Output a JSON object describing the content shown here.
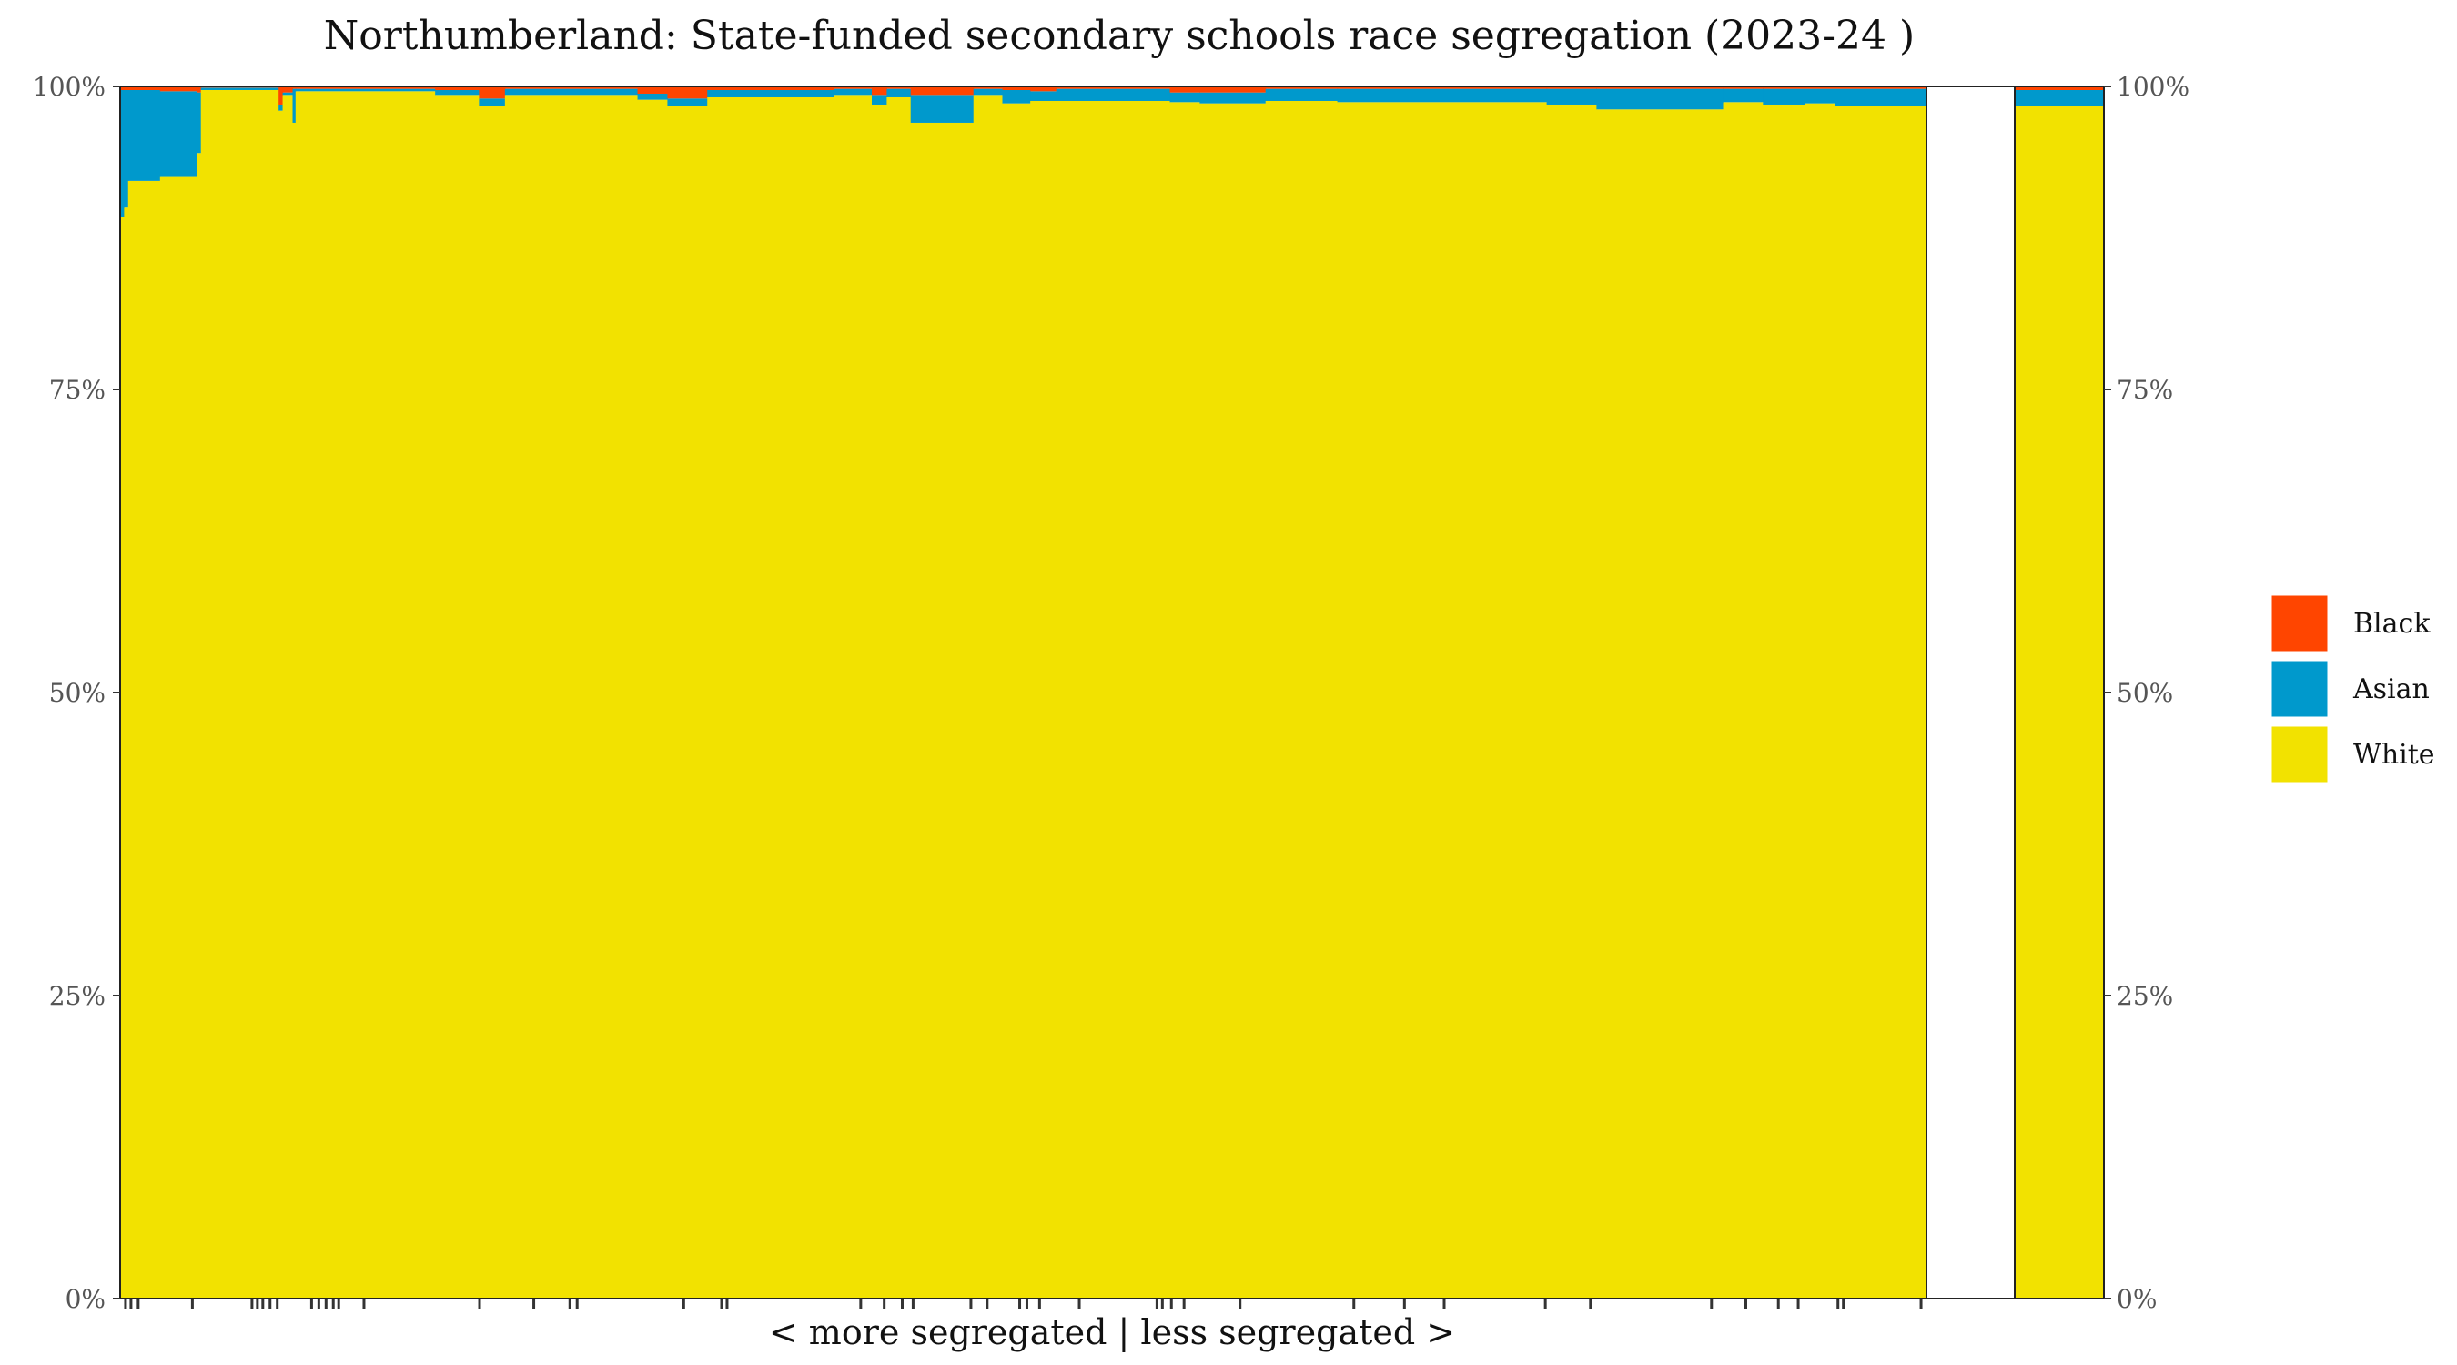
{
  "chart_data": {
    "type": "bar",
    "subtype": "stacked-100-percent-variable-width",
    "title": "Northumberland: State-funded secondary schools race segregation (2023-24 )",
    "xlabel": "< more segregated | less segregated >",
    "ylabel": "",
    "ylim": [
      0,
      100
    ],
    "y_ticks": [
      "0%",
      "25%",
      "50%",
      "75%",
      "100%"
    ],
    "y_tick_values": [
      0,
      25,
      50,
      75,
      100
    ],
    "y_axis_both_sides": true,
    "grid": false,
    "legend": {
      "position": "right",
      "entries": [
        "Black",
        "Asian",
        "White"
      ]
    },
    "colors": {
      "Black": "#FF4500",
      "Asian": "#0099CC",
      "White": "#F2E200"
    },
    "stack_order": [
      "White",
      "Asian",
      "Black"
    ],
    "schools": [
      {
        "weight": 4,
        "White": 89.2,
        "Asian": 10.5,
        "Black": 0.3
      },
      {
        "weight": 4,
        "White": 90.0,
        "Asian": 9.7,
        "Black": 0.3
      },
      {
        "weight": 32,
        "White": 92.2,
        "Asian": 7.5,
        "Black": 0.3
      },
      {
        "weight": 37,
        "White": 92.6,
        "Asian": 7.0,
        "Black": 0.4
      },
      {
        "weight": 4,
        "White": 94.5,
        "Asian": 5.0,
        "Black": 0.5
      },
      {
        "weight": 78,
        "White": 99.7,
        "Asian": 0.2,
        "Black": 0.1
      },
      {
        "weight": 4,
        "White": 98.0,
        "Asian": 0.5,
        "Black": 1.5
      },
      {
        "weight": 10,
        "White": 99.3,
        "Asian": 0.2,
        "Black": 0.5
      },
      {
        "weight": 3,
        "White": 97.0,
        "Asian": 2.8,
        "Black": 0.2
      },
      {
        "weight": 140,
        "White": 99.6,
        "Asian": 0.2,
        "Black": 0.2
      },
      {
        "weight": 44,
        "White": 99.3,
        "Asian": 0.4,
        "Black": 0.3
      },
      {
        "weight": 26,
        "White": 98.4,
        "Asian": 0.6,
        "Black": 1.0
      },
      {
        "weight": 36,
        "White": 99.3,
        "Asian": 0.5,
        "Black": 0.2
      },
      {
        "weight": 97,
        "White": 99.3,
        "Asian": 0.5,
        "Black": 0.2
      },
      {
        "weight": 30,
        "White": 98.9,
        "Asian": 0.5,
        "Black": 0.6
      },
      {
        "weight": 40,
        "White": 98.4,
        "Asian": 0.6,
        "Black": 1.0
      },
      {
        "weight": 127,
        "White": 99.1,
        "Asian": 0.6,
        "Black": 0.3
      },
      {
        "weight": 38,
        "White": 99.3,
        "Asian": 0.5,
        "Black": 0.2
      },
      {
        "weight": 15,
        "White": 98.5,
        "Asian": 0.8,
        "Black": 0.7
      },
      {
        "weight": 24,
        "White": 99.1,
        "Asian": 0.7,
        "Black": 0.2
      },
      {
        "weight": 63,
        "White": 97.0,
        "Asian": 2.3,
        "Black": 0.7
      },
      {
        "weight": 29,
        "White": 99.3,
        "Asian": 0.5,
        "Black": 0.2
      },
      {
        "weight": 28,
        "White": 98.6,
        "Asian": 1.1,
        "Black": 0.3
      },
      {
        "weight": 26,
        "White": 98.8,
        "Asian": 0.8,
        "Black": 0.4
      },
      {
        "weight": 114,
        "White": 98.8,
        "Asian": 1.0,
        "Black": 0.2
      },
      {
        "weight": 30,
        "White": 98.7,
        "Asian": 0.8,
        "Black": 0.5
      },
      {
        "weight": 66,
        "White": 98.6,
        "Asian": 0.9,
        "Black": 0.5
      },
      {
        "weight": 72,
        "White": 98.8,
        "Asian": 1.0,
        "Black": 0.2
      },
      {
        "weight": 210,
        "White": 98.7,
        "Asian": 1.1,
        "Black": 0.2
      },
      {
        "weight": 50,
        "White": 98.5,
        "Asian": 1.3,
        "Black": 0.2
      },
      {
        "weight": 127,
        "White": 98.1,
        "Asian": 1.7,
        "Black": 0.2
      },
      {
        "weight": 40,
        "White": 98.7,
        "Asian": 1.1,
        "Black": 0.2
      },
      {
        "weight": 42,
        "White": 98.5,
        "Asian": 1.3,
        "Black": 0.2
      },
      {
        "weight": 30,
        "White": 98.6,
        "Asian": 1.2,
        "Black": 0.2
      },
      {
        "weight": 92,
        "White": 98.4,
        "Asian": 1.4,
        "Black": 0.2
      }
    ],
    "overall": {
      "White": 98.4,
      "Asian": 1.3,
      "Black": 0.3
    },
    "rug_positions": [
      0.3,
      0.6,
      1.0,
      4.0,
      7.3,
      7.6,
      7.9,
      8.3,
      8.7,
      10.6,
      11.0,
      11.4,
      11.8,
      12.1,
      13.5,
      19.9,
      22.9,
      24.9,
      25.3,
      31.2,
      33.3,
      33.6,
      41.0,
      42.3,
      43.3,
      43.9,
      47.1,
      48.0,
      49.8,
      50.2,
      50.9,
      53.1,
      57.4,
      57.7,
      58.2,
      58.9,
      62.0,
      68.3,
      71.1,
      73.3,
      78.9,
      81.4,
      88.1,
      90.0,
      91.8,
      92.9,
      95.1,
      95.4,
      99.7
    ]
  }
}
